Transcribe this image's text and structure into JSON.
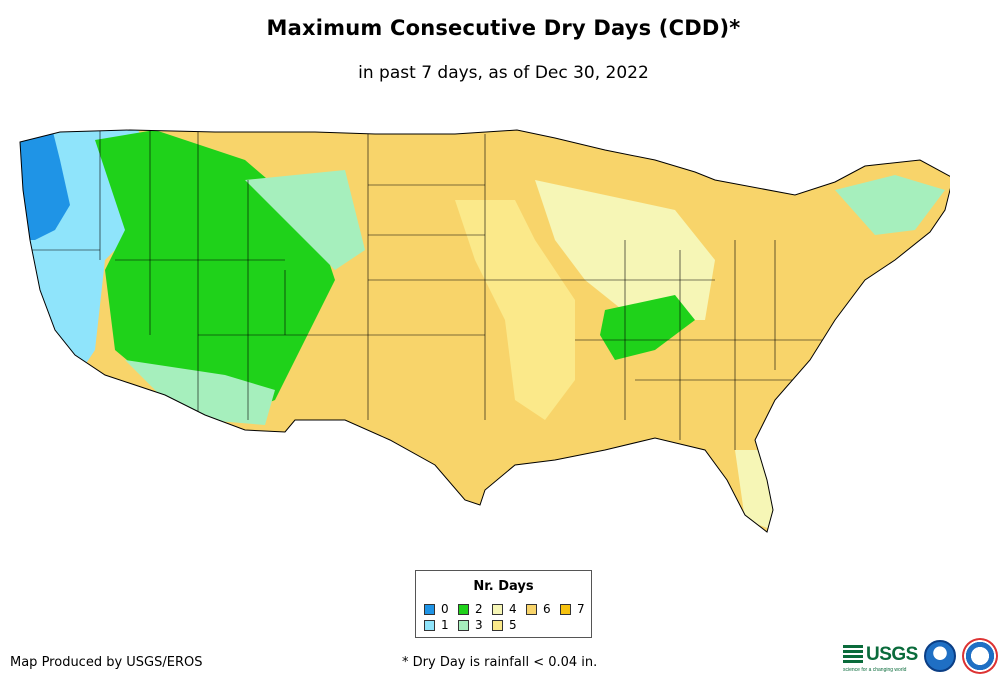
{
  "title": "Maximum Consecutive Dry Days (CDD)*",
  "subtitle": "in past 7 days, as of Dec 30, 2022",
  "legend": {
    "title": "Nr. Days",
    "items": [
      {
        "label": "0",
        "color": "#1f94e6"
      },
      {
        "label": "1",
        "color": "#8fe4fb"
      },
      {
        "label": "2",
        "color": "#1fd21a"
      },
      {
        "label": "3",
        "color": "#a6efbd"
      },
      {
        "label": "4",
        "color": "#f6f6b6"
      },
      {
        "label": "5",
        "color": "#fbe98a"
      },
      {
        "label": "6",
        "color": "#f8d46a"
      },
      {
        "label": "7",
        "color": "#f6c20f"
      }
    ]
  },
  "footer": {
    "credit": "Map Produced by USGS/EROS",
    "note": "* Dry Day is rainfall < 0.04 in."
  },
  "logos": {
    "usgs": "USGS",
    "usgs_tagline": "science for a changing world",
    "noaa": "noaa-logo",
    "nws": "national-weather-service-logo"
  }
}
